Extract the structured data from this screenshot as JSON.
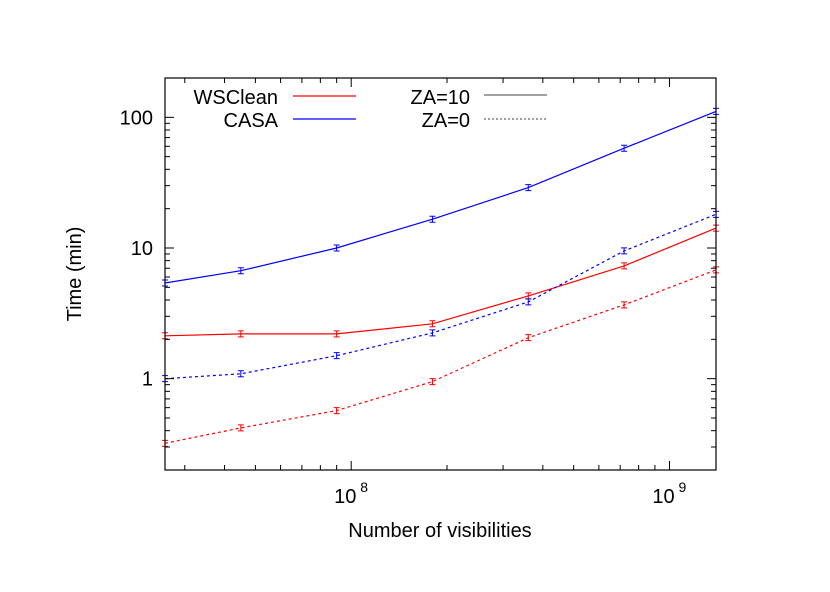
{
  "chart_data": {
    "type": "line",
    "title": "",
    "xlabel": "Number of visibilities",
    "ylabel": "Time (min)",
    "xscale": "log",
    "yscale": "log",
    "xlim": [
      26000000.0,
      1400000000.0
    ],
    "ylim": [
      0.2,
      200
    ],
    "xticks": [
      {
        "value": 100000000.0,
        "label": "10",
        "exp": "8"
      },
      {
        "value": 1000000000.0,
        "label": "10",
        "exp": "9"
      }
    ],
    "yticks": [
      {
        "value": 1,
        "label": "1"
      },
      {
        "value": 10,
        "label": "10"
      },
      {
        "value": 100,
        "label": "100"
      }
    ],
    "grid": false,
    "legend_placement": "top-left",
    "legend": {
      "colors": [
        {
          "name": "WSClean",
          "color": "#ff0000"
        },
        {
          "name": "CASA",
          "color": "#0000ff"
        }
      ],
      "styles": [
        {
          "name": "ZA=10",
          "dash": "solid"
        },
        {
          "name": "ZA=0",
          "dash": "dotted"
        }
      ]
    },
    "x": [
      26000000.0,
      45000000.0,
      90000000.0,
      180000000.0,
      360000000.0,
      720000000.0,
      1400000000.0
    ],
    "series": [
      {
        "name": "CASA ZA=10",
        "color": "#0000ff",
        "dash": "solid",
        "values": [
          5.4,
          6.7,
          10,
          16.6,
          29,
          58,
          111
        ]
      },
      {
        "name": "WSClean ZA=10",
        "color": "#ff0000",
        "dash": "solid",
        "values": [
          2.13,
          2.2,
          2.2,
          2.63,
          4.3,
          7.3,
          14.2
        ]
      },
      {
        "name": "CASA ZA=0",
        "color": "#0000ff",
        "dash": "dotted",
        "values": [
          1.0,
          1.09,
          1.5,
          2.24,
          3.87,
          9.5,
          18.1
        ]
      },
      {
        "name": "WSClean ZA=0",
        "color": "#ff0000",
        "dash": "dotted",
        "values": [
          0.32,
          0.42,
          0.57,
          0.95,
          2.06,
          3.67,
          6.8
        ]
      }
    ]
  }
}
